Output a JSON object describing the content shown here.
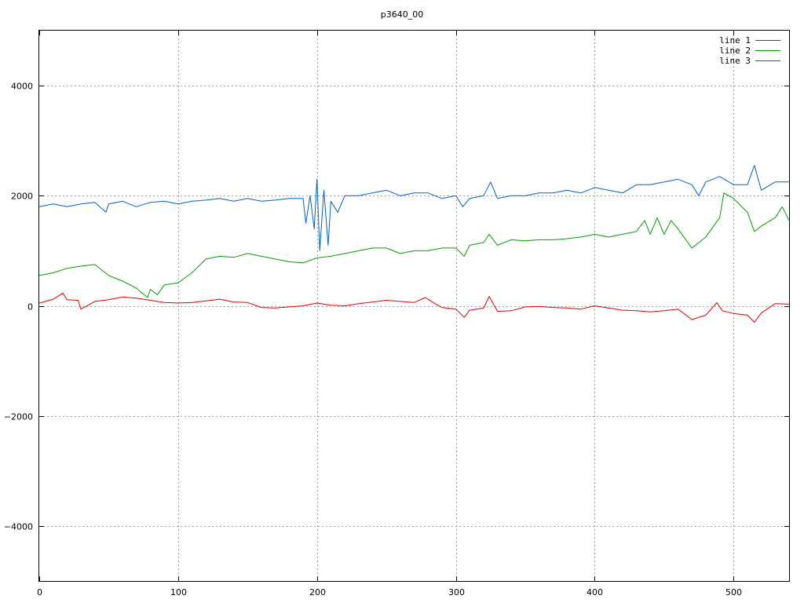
{
  "chart_data": {
    "type": "line",
    "title": "p3640_00",
    "xlabel": "",
    "ylabel": "",
    "xlim": [
      0,
      540
    ],
    "ylim": [
      -5000,
      5000
    ],
    "x_ticks": [
      0,
      100,
      200,
      300,
      400,
      500
    ],
    "y_ticks": [
      -4000,
      -2000,
      0,
      2000,
      4000
    ],
    "grid": true,
    "legend_position": "top-right",
    "series": [
      {
        "name": "line 1",
        "color": "#e00000",
        "x": [
          0,
          10,
          17,
          20,
          28,
          30,
          40,
          50,
          60,
          70,
          80,
          90,
          100,
          110,
          120,
          130,
          140,
          150,
          160,
          170,
          180,
          190,
          200,
          210,
          220,
          230,
          240,
          250,
          260,
          270,
          278,
          285,
          290,
          300,
          306,
          310,
          320,
          324,
          330,
          340,
          350,
          360,
          370,
          380,
          390,
          400,
          410,
          420,
          430,
          440,
          450,
          460,
          470,
          480,
          488,
          492,
          500,
          510,
          515,
          520,
          530,
          540
        ],
        "y": [
          50,
          120,
          230,
          110,
          100,
          -60,
          80,
          110,
          160,
          140,
          100,
          60,
          50,
          60,
          90,
          120,
          70,
          60,
          -30,
          -40,
          -20,
          0,
          50,
          10,
          0,
          40,
          70,
          100,
          80,
          60,
          150,
          40,
          -30,
          -60,
          -210,
          -80,
          -40,
          170,
          -100,
          -90,
          -20,
          -10,
          -30,
          -40,
          -60,
          0,
          -40,
          -80,
          -90,
          -110,
          -90,
          -60,
          -250,
          -170,
          60,
          -90,
          -140,
          -170,
          -300,
          -130,
          40,
          30
        ]
      },
      {
        "name": "line 2",
        "color": "#00a000",
        "x": [
          0,
          10,
          20,
          30,
          40,
          50,
          60,
          70,
          78,
          80,
          85,
          90,
          100,
          110,
          120,
          130,
          140,
          150,
          160,
          170,
          180,
          190,
          200,
          210,
          220,
          230,
          240,
          250,
          260,
          270,
          280,
          290,
          300,
          306,
          310,
          320,
          324,
          330,
          340,
          350,
          360,
          370,
          380,
          390,
          400,
          410,
          420,
          430,
          436,
          440,
          445,
          450,
          455,
          460,
          470,
          480,
          490,
          493,
          500,
          510,
          515,
          520,
          530,
          535,
          540
        ],
        "y": [
          550,
          600,
          680,
          720,
          750,
          550,
          450,
          320,
          150,
          300,
          200,
          380,
          420,
          600,
          850,
          900,
          880,
          950,
          900,
          850,
          800,
          780,
          870,
          900,
          950,
          1000,
          1050,
          1050,
          950,
          1000,
          1000,
          1050,
          1050,
          900,
          1100,
          1150,
          1300,
          1100,
          1200,
          1180,
          1200,
          1200,
          1220,
          1250,
          1300,
          1250,
          1300,
          1350,
          1550,
          1300,
          1600,
          1300,
          1550,
          1400,
          1050,
          1250,
          1600,
          2050,
          1950,
          1700,
          1350,
          1450,
          1600,
          1800,
          1550
        ]
      },
      {
        "name": "line 3",
        "color": "#0060d0",
        "x": [
          0,
          10,
          20,
          30,
          40,
          48,
          50,
          60,
          70,
          80,
          90,
          100,
          110,
          120,
          130,
          140,
          150,
          160,
          170,
          180,
          190,
          192,
          195,
          198,
          200,
          202,
          205,
          208,
          210,
          215,
          220,
          230,
          240,
          250,
          260,
          270,
          280,
          290,
          300,
          305,
          310,
          320,
          325,
          330,
          340,
          350,
          360,
          370,
          380,
          390,
          400,
          410,
          420,
          430,
          440,
          450,
          460,
          470,
          475,
          480,
          490,
          500,
          510,
          515,
          520,
          530,
          540
        ],
        "y": [
          1800,
          1850,
          1800,
          1850,
          1880,
          1700,
          1850,
          1900,
          1800,
          1880,
          1900,
          1850,
          1900,
          1920,
          1950,
          1900,
          1950,
          1900,
          1920,
          1950,
          1950,
          1500,
          2000,
          1400,
          2300,
          1000,
          2100,
          1100,
          1900,
          1700,
          2000,
          2000,
          2050,
          2100,
          2000,
          2050,
          2050,
          1950,
          2000,
          1800,
          1950,
          2000,
          2250,
          1950,
          2000,
          2000,
          2050,
          2050,
          2100,
          2050,
          2150,
          2100,
          2050,
          2200,
          2200,
          2250,
          2300,
          2200,
          2000,
          2250,
          2350,
          2200,
          2200,
          2550,
          2100,
          2250,
          2250
        ]
      }
    ]
  }
}
